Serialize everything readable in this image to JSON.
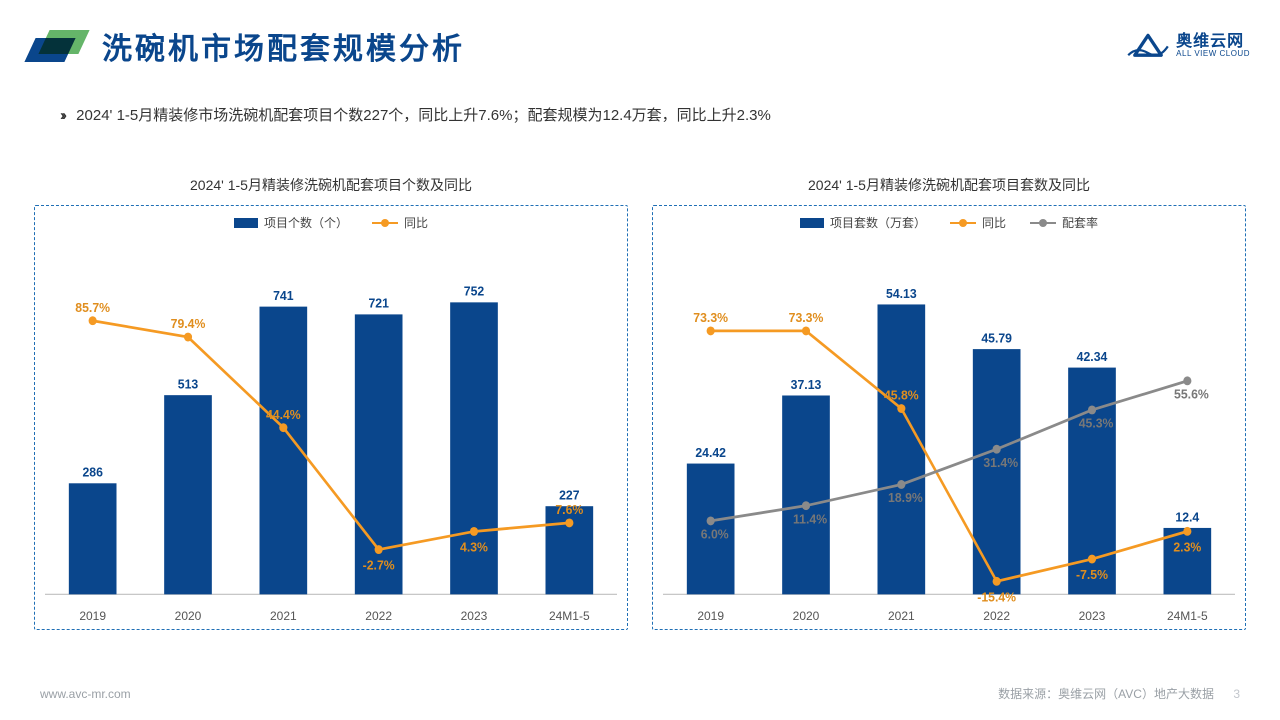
{
  "header": {
    "title": "洗碗机市场配套规模分析",
    "logo_cn": "奥维云网",
    "logo_en": "ALL VIEW CLOUD",
    "logo_abbr": "AVC"
  },
  "subtitle": "2024' 1-5月精装修市场洗碗机配套项目个数227个，同比上升7.6%；配套规模为12.4万套，同比上升2.3%",
  "categories": [
    "2019",
    "2020",
    "2021",
    "2022",
    "2023",
    "24M1-5"
  ],
  "chart_left": {
    "title": "2024' 1-5月精装修洗碗机配套项目个数及同比",
    "legend": {
      "bar": "项目个数（个）",
      "line1": "同比"
    },
    "bar_values": [
      286,
      513,
      741,
      721,
      752,
      227
    ],
    "bar_max": 800,
    "bar_color": "#0a468c",
    "line1_pct": [
      85.7,
      79.4,
      44.4,
      -2.7,
      4.3,
      7.6
    ],
    "line_range": [
      -20,
      100
    ],
    "line1_color": "#f59a23"
  },
  "chart_right": {
    "title": "2024' 1-5月精装修洗碗机配套项目套数及同比",
    "legend": {
      "bar": "项目套数（万套）",
      "line1": "同比",
      "line2": "配套率"
    },
    "bar_values": [
      24.42,
      37.13,
      54.13,
      45.79,
      42.34,
      12.4
    ],
    "bar_max": 58,
    "bar_color": "#0a468c",
    "line1_pct": [
      73.3,
      73.3,
      45.8,
      -15.4,
      -7.5,
      2.3
    ],
    "line2_pct": [
      6.0,
      11.4,
      18.9,
      31.4,
      45.3,
      55.6
    ],
    "line_range": [
      -20,
      90
    ],
    "line1_color": "#f59a23",
    "line2_color": "#8a8a8a",
    "line2_overlap_label": "24.42"
  },
  "footer": {
    "url": "www.avc-mr.com",
    "source": "数据来源：奥维云网（AVC）地产大数据",
    "page": "3"
  },
  "style": {
    "border_color": "#1f6fb5",
    "title_color": "#0a468c",
    "fontsize_title": 30,
    "fontsize_chart_title": 14,
    "fontsize_label": 12
  }
}
